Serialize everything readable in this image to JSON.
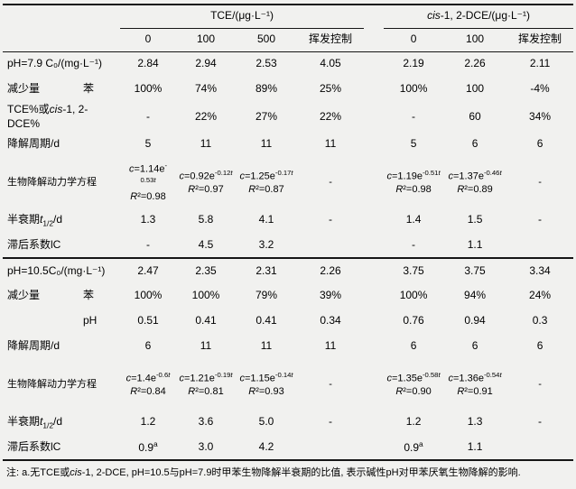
{
  "colors": {
    "background": "#f1f1ef",
    "rule": "#161616",
    "text": "#000000"
  },
  "table": {
    "column_groups": [
      {
        "label": "TCE/(μg·L⁻¹)",
        "span": 4
      },
      {
        "label": "*cis*-1, 2-DCE/(μg·L⁻¹)",
        "span": 3
      }
    ],
    "sub_headers": [
      "0",
      "100",
      "500",
      "挥发控制",
      "0",
      "100",
      "挥发控制"
    ],
    "sections": [
      {
        "rows": [
          {
            "label": "pH=7.9 C₀/(mg·L⁻¹)",
            "values": [
              "2.84",
              "2.94",
              "2.53",
              "4.05",
              "2.19",
              "2.26",
              "2.11"
            ]
          },
          {
            "label": "减少量　　　　苯",
            "values": [
              "100%",
              "74%",
              "89%",
              "25%",
              "100%",
              "100",
              "-4%"
            ]
          },
          {
            "label": "TCE%或*cis*-1, 2-DCE%",
            "values": [
              "-",
              "22%",
              "27%",
              "22%",
              "-",
              "60",
              "34%"
            ]
          },
          {
            "label": "降解周期/d",
            "values": [
              "5",
              "11",
              "11",
              "11",
              "5",
              "6",
              "6"
            ]
          },
          {
            "label": "生物降解动力学方程",
            "values": [
              "*c*=1.14e^{-0.53*t*}\n*R*²=0.98",
              "*c*=0.92e^{-0.12*t*}\n*R*²=0.97",
              "*c*=1.25e^{-0.17*t*}\n*R*²=0.87",
              "-",
              "*c*=1.19e^{-0.51*t*}\n*R*²=0.98",
              "*c*=1.37e^{-0.46*t*}\n*R*²=0.89",
              "-"
            ]
          },
          {
            "label": "半衰期*t*_{1/2}/d",
            "values": [
              "1.3",
              "5.8",
              "4.1",
              "-",
              "1.4",
              "1.5",
              "-"
            ]
          },
          {
            "label": "滞后系数lC",
            "values": [
              "-",
              "4.5",
              "3.2",
              "",
              "-",
              "1.1",
              ""
            ]
          }
        ]
      },
      {
        "rows": [
          {
            "label": "pH=10.5C₀/(mg·L⁻¹)",
            "values": [
              "2.47",
              "2.35",
              "2.31",
              "2.26",
              "3.75",
              "3.75",
              "3.34"
            ]
          },
          {
            "label": "减少量　　　　苯",
            "values": [
              "100%",
              "100%",
              "79%",
              "39%",
              "100%",
              "94%",
              "24%"
            ]
          },
          {
            "label": "　　　　　　　pH",
            "values": [
              "0.51",
              "0.41",
              "0.41",
              "0.34",
              "0.76",
              "0.94",
              "0.3"
            ]
          },
          {
            "label": "降解周期/d",
            "values": [
              "6",
              "11",
              "11",
              "11",
              "6",
              "6",
              "6"
            ]
          },
          {
            "label": "生物降解动力学方程",
            "values": [
              "*c*=1.4e^{-0.6*t*}\n*R*²=0.84",
              "*c*=1.21e^{-0.19*t*}\n*R*²=0.81",
              "*c*=1.15e^{-0.14*t*}\n*R*²=0.93",
              "-",
              "*c*=1.35e^{-0.58*t*}\n*R*²=0.90",
              "*c*=1.36e^{-0.54*t*}\n*R*²=0.91",
              "-"
            ]
          },
          {
            "label": "半衰期*t*_{1/2}/d",
            "values": [
              "1.2",
              "3.6",
              "5.0",
              "-",
              "1.2",
              "1.3",
              "-"
            ]
          },
          {
            "label": "滞后系数lC",
            "values": [
              "0.9^{a}",
              "3.0",
              "4.2",
              "",
              "0.9^{a}",
              "1.1",
              ""
            ]
          }
        ]
      }
    ],
    "note": "注: a.无TCE或*cis*-1, 2-DCE, pH=10.5与pH=7.9时甲苯生物降解半衰期的比值, 表示碱性pH对甲苯厌氧生物降解的影响."
  }
}
